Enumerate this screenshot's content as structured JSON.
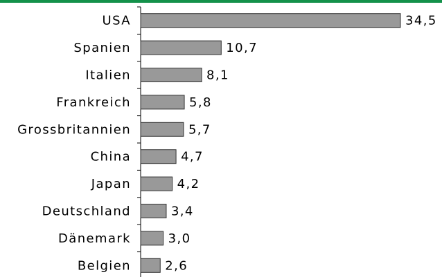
{
  "chart_data": {
    "type": "bar",
    "orientation": "horizontal",
    "categories": [
      "USA",
      "Spanien",
      "Italien",
      "Frankreich",
      "Grossbritannien",
      "China",
      "Japan",
      "Deutschland",
      "Dänemark",
      "Belgien"
    ],
    "values": [
      34.5,
      10.7,
      8.1,
      5.8,
      5.7,
      4.7,
      4.2,
      3.4,
      3.0,
      2.6
    ],
    "value_labels": [
      "34,5",
      "10,7",
      "8,1",
      "5,8",
      "5,7",
      "4,7",
      "4,2",
      "3,4",
      "3,0",
      "2,6"
    ],
    "color": "#999999"
  }
}
